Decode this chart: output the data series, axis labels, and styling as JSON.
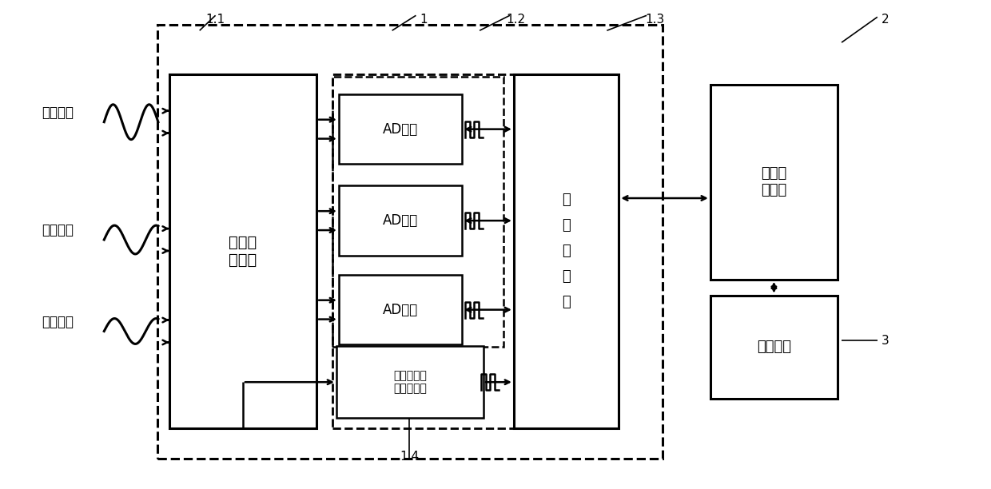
{
  "bg_color": "#ffffff",
  "lc": "#000000",
  "labels": {
    "sine": "正弦信号",
    "cosine": "余弦信号",
    "excite": "励磁信号",
    "signal_cond": "信号调\n理电路",
    "ad1": "AD芯片",
    "ad2": "AD芯片",
    "ad3": "AD芯片",
    "prog": "可\n编\n程\n器\n件",
    "aux": "励磁电压辅\n助处理电路",
    "data_proc": "数据处\n理部件",
    "interface": "接口电路",
    "n1": "1",
    "n11": "1.1",
    "n12": "1.2",
    "n13": "1.3",
    "n14": "1.4",
    "n2": "2",
    "n3": "3"
  }
}
